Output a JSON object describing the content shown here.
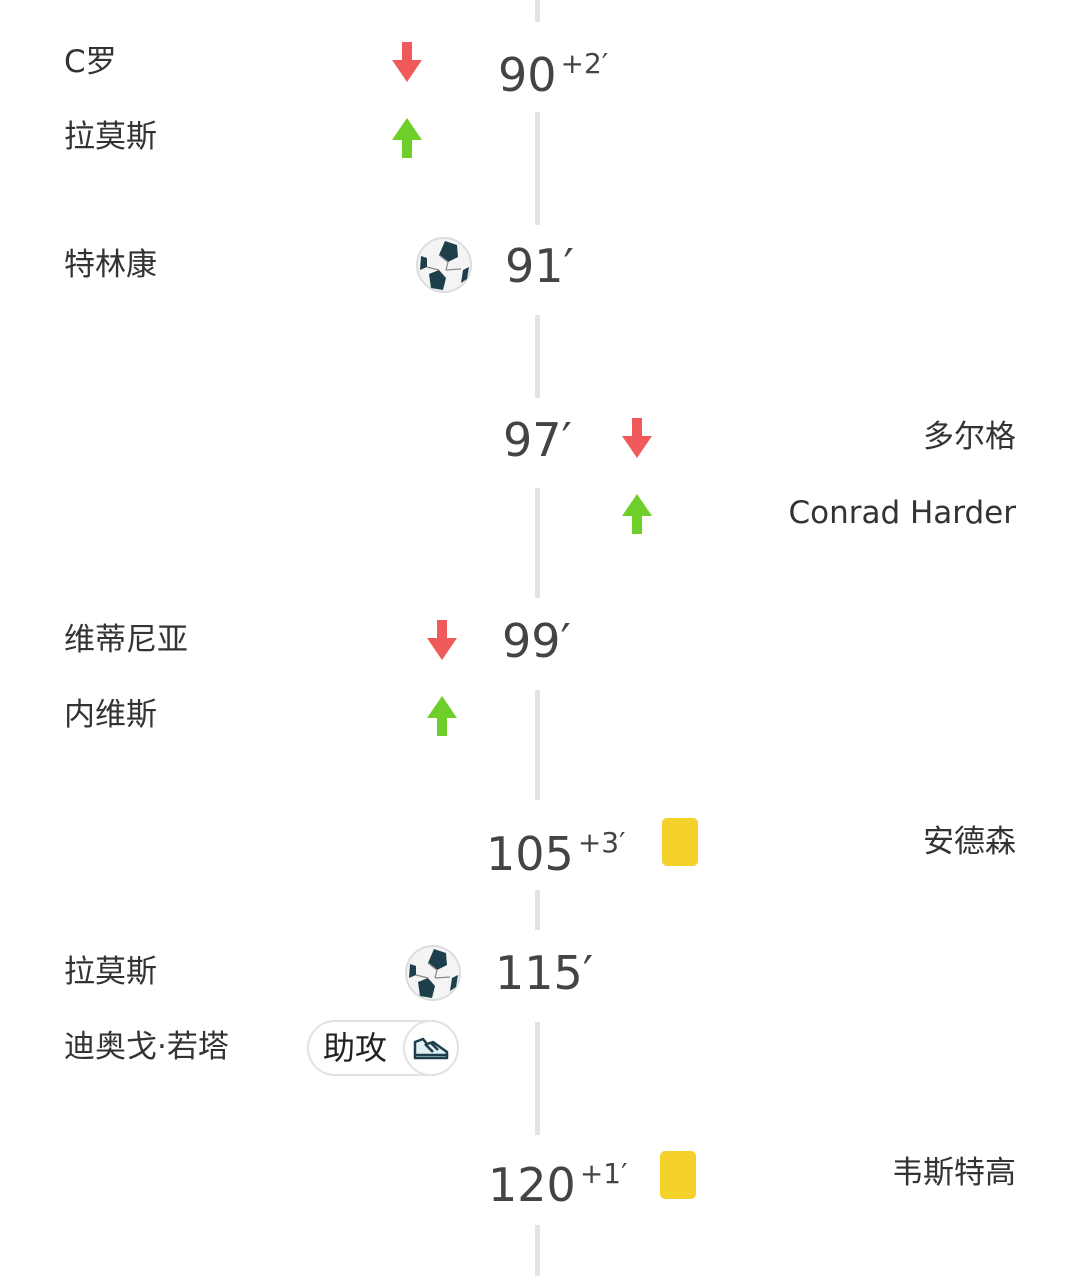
{
  "colors": {
    "sub_out": "#f05a5a",
    "sub_in": "#6fcf2a",
    "yellow_card": "#f4d22b",
    "timeline": "#e4e4e4"
  },
  "events": [
    {
      "side": "home",
      "type": "substitution",
      "minute": "90",
      "extra": "+2′",
      "out": "C罗",
      "in": "拉莫斯",
      "icons": [
        "arrow-down-icon",
        "arrow-up-icon"
      ]
    },
    {
      "side": "home",
      "type": "goal",
      "minute": "91′",
      "player": "特林康",
      "icon": "soccer-ball-icon"
    },
    {
      "side": "away",
      "type": "substitution",
      "minute": "97′",
      "out": "多尔格",
      "in": "Conrad Harder",
      "icons": [
        "arrow-down-icon",
        "arrow-up-icon"
      ]
    },
    {
      "side": "home",
      "type": "substitution",
      "minute": "99′",
      "out": "维蒂尼亚",
      "in": "内维斯",
      "icons": [
        "arrow-down-icon",
        "arrow-up-icon"
      ]
    },
    {
      "side": "away",
      "type": "yellow_card",
      "minute": "105",
      "extra": "+3′",
      "player": "安德森",
      "icon": "yellow-card-icon"
    },
    {
      "side": "home",
      "type": "goal",
      "minute": "115′",
      "player": "拉莫斯",
      "assist": "迪奥戈·若塔",
      "assist_label": "助攻",
      "icon": "soccer-ball-icon"
    },
    {
      "side": "away",
      "type": "yellow_card",
      "minute": "120",
      "extra": "+1′",
      "player": "韦斯特高",
      "icon": "yellow-card-icon"
    }
  ]
}
